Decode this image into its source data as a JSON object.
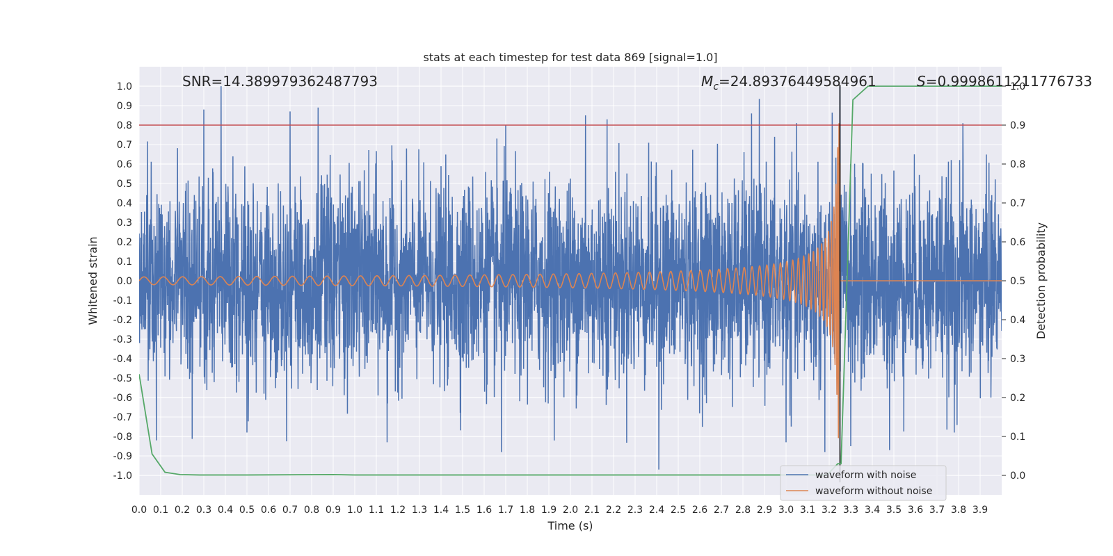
{
  "chart_data": {
    "type": "line",
    "title": "stats at each timestep for test data 869 [signal=1.0]",
    "xlabel": "Time (s)",
    "ylabel": "Whitened strain",
    "y2label": "Detection probability",
    "xlim": [
      0.0,
      4.0
    ],
    "ylim": [
      -1.1,
      1.1
    ],
    "y2lim": [
      -0.05,
      1.05
    ],
    "x_ticks": [
      "0.0",
      "0.1",
      "0.2",
      "0.3",
      "0.4",
      "0.5",
      "0.6",
      "0.7",
      "0.8",
      "0.9",
      "1.0",
      "1.1",
      "1.2",
      "1.3",
      "1.4",
      "1.5",
      "1.6",
      "1.7",
      "1.8",
      "1.9",
      "2.0",
      "2.1",
      "2.2",
      "2.3",
      "2.4",
      "2.5",
      "2.6",
      "2.7",
      "2.8",
      "2.9",
      "3.0",
      "3.1",
      "3.2",
      "3.3",
      "3.4",
      "3.5",
      "3.6",
      "3.7",
      "3.8",
      "3.9"
    ],
    "y_ticks": [
      "1.0",
      "0.9",
      "0.8",
      "0.7",
      "0.6",
      "0.5",
      "0.4",
      "0.3",
      "0.2",
      "0.1",
      "0.0",
      "-0.1",
      "-0.2",
      "-0.3",
      "-0.4",
      "-0.5",
      "-0.6",
      "-0.7",
      "-0.8",
      "-0.9",
      "-1.0"
    ],
    "y2_ticks": [
      "1.0",
      "0.9",
      "0.8",
      "0.7",
      "0.6",
      "0.5",
      "0.4",
      "0.3",
      "0.2",
      "0.1",
      "0.0"
    ],
    "annotations": {
      "snr": "SNR=14.389979362487793",
      "mc_symbol": "M",
      "mc_sub": "c",
      "mc_value": "=24.89376449584961",
      "s_symbol": "S",
      "s_value": "=0.9998611211776733"
    },
    "threshold": {
      "axis": "right",
      "value": 0.9,
      "color": "#c44e52"
    },
    "merger_time": 3.25,
    "noise": {
      "name": "waveform with noise",
      "color": "#4c72b0",
      "t_start": 0.0,
      "t_end": 4.0,
      "envelope": [
        0.55,
        0.6,
        0.6,
        0.65,
        0.6,
        0.55,
        0.6,
        0.6,
        0.6,
        0.6,
        0.6,
        0.6,
        0.6,
        0.6,
        0.6,
        0.6,
        0.6
      ],
      "spikes": [
        [
          0.3,
          0.88
        ],
        [
          0.38,
          1.0
        ],
        [
          0.7,
          0.87
        ],
        [
          0.83,
          0.89
        ],
        [
          1.7,
          0.8
        ],
        [
          2.07,
          0.85
        ],
        [
          2.17,
          0.83
        ],
        [
          2.84,
          0.86
        ],
        [
          3.18,
          1.0
        ],
        [
          3.25,
          1.0
        ],
        [
          3.82,
          0.81
        ],
        [
          0.08,
          -0.82
        ],
        [
          0.5,
          -0.78
        ],
        [
          1.15,
          -0.83
        ],
        [
          1.68,
          -0.88
        ],
        [
          2.41,
          -0.97
        ],
        [
          3.0,
          -0.83
        ],
        [
          3.18,
          -0.88
        ],
        [
          3.3,
          -0.85
        ],
        [
          3.48,
          -0.87
        ],
        [
          3.78,
          -0.78
        ],
        [
          3.95,
          -0.6
        ]
      ]
    },
    "clean": {
      "name": "waveform without noise",
      "color": "#dd8452",
      "t_start": 0.0,
      "t_merge": 3.25,
      "amp_start": 0.02,
      "amp_peak": 0.82,
      "f_start": 11,
      "f_peak": 200
    },
    "probability": {
      "name": "detection probability",
      "color": "#55a868",
      "axis": "right",
      "x": [
        0.0,
        0.06,
        0.12,
        0.19,
        0.28,
        0.5,
        0.9,
        1.0,
        1.5,
        2.0,
        2.5,
        3.0,
        3.1,
        3.19,
        3.24,
        3.255,
        3.31,
        3.38,
        3.5,
        3.7,
        4.0
      ],
      "y": [
        0.26,
        0.055,
        0.008,
        0.002,
        0.001,
        0.001,
        0.002,
        0.001,
        0.001,
        0.001,
        0.001,
        0.001,
        0.001,
        0.001,
        0.03,
        0.03,
        0.965,
        1.0,
        1.0,
        1.0,
        1.0
      ]
    },
    "legend": {
      "position": "lower-right",
      "entries": [
        "waveform with noise",
        "waveform without noise"
      ]
    }
  }
}
